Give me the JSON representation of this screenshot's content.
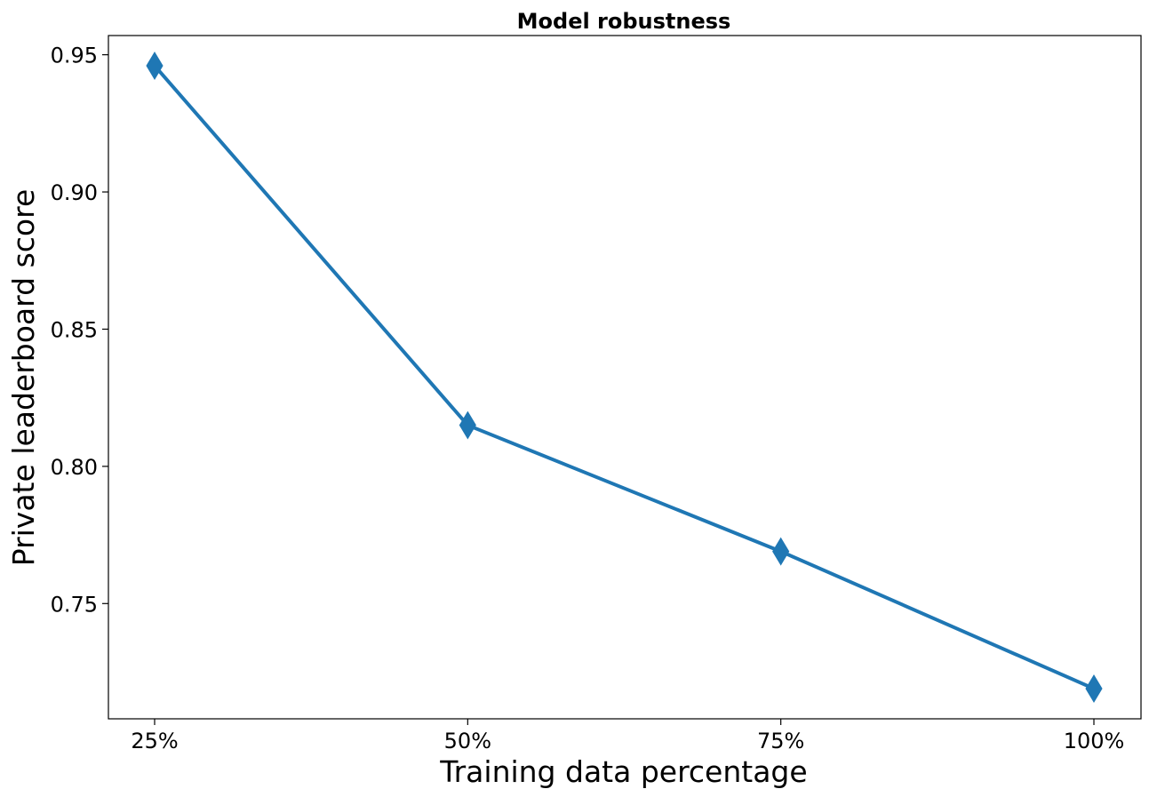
{
  "chart_data": {
    "type": "line",
    "title": "Model robustness",
    "xlabel": "Training data percentage",
    "ylabel": "Private leaderboard score",
    "categories": [
      "25%",
      "50%",
      "75%",
      "100%"
    ],
    "series": [
      {
        "values": [
          0.946,
          0.815,
          0.769,
          0.719
        ],
        "color": "#1f77b4",
        "marker": "diamond"
      }
    ],
    "y_ticks": [
      0.75,
      0.8,
      0.85,
      0.9,
      0.95
    ],
    "y_tick_labels": [
      "0.75",
      "0.80",
      "0.85",
      "0.90",
      "0.95"
    ],
    "ylim": [
      0.708,
      0.957
    ],
    "grid": false
  }
}
